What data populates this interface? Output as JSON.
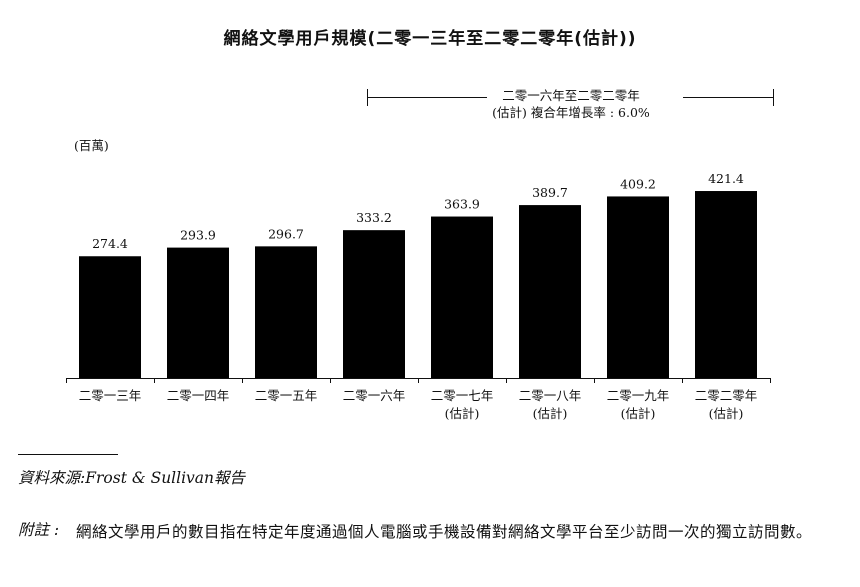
{
  "chart_data": {
    "type": "bar",
    "title": "網絡文學用戶規模(二零一三年至二零二零年(估計))",
    "unit_label": "(百萬)",
    "categories": [
      "二零一三年",
      "二零一四年",
      "二零一五年",
      "二零一六年",
      "二零一七年",
      "二零一八年",
      "二零一九年",
      "二零二零年"
    ],
    "category_sublabels": [
      "",
      "",
      "",
      "",
      "(估計)",
      "(估計)",
      "(估計)",
      "(估計)"
    ],
    "values": [
      274.4,
      293.9,
      296.7,
      333.2,
      363.9,
      389.7,
      409.2,
      421.4
    ],
    "value_labels": [
      "274.4",
      "293.9",
      "296.7",
      "333.2",
      "363.9",
      "389.7",
      "409.2",
      "421.4"
    ],
    "bar_color": "#000000",
    "annotation": {
      "line1": "二零一六年至二零二零年",
      "line2": "(估計) 複合年增長率 : 6.0%",
      "span": [
        "二零一六年",
        "二零二零年"
      ]
    },
    "grid": false
  },
  "footer": {
    "source_label": "資料來源",
    "source_sep": ":",
    "source_text": "Frost & Sullivan報告",
    "note_label": "附註 :",
    "note_text": "網絡文學用戶的數目指在特定年度通過個人電腦或手機設備對網絡文學平台至少訪問一次的獨立訪問數。"
  }
}
